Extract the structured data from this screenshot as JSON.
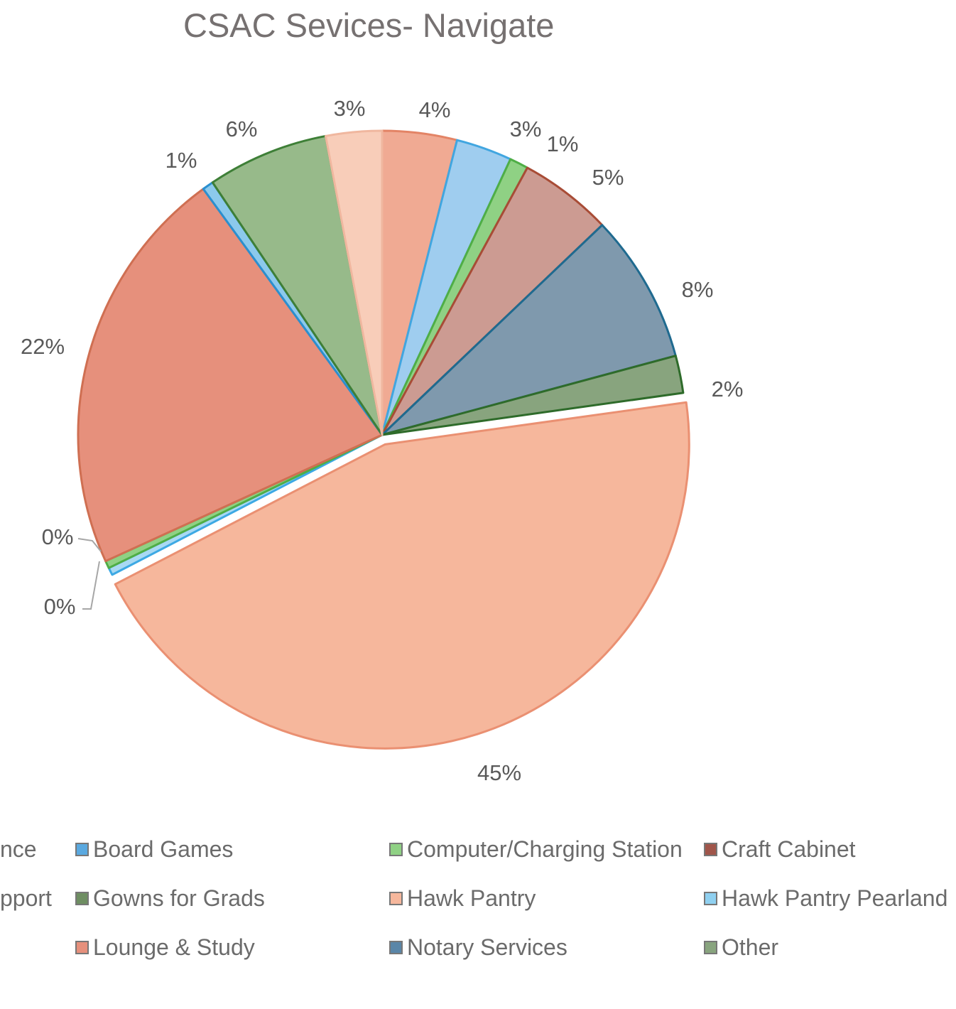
{
  "chart_data": {
    "type": "pie",
    "title": "CSAC Sevices- Navigate",
    "slices": [
      {
        "label": "Board Games",
        "value": 4,
        "display": "4%",
        "fill": "#f0aa93",
        "stroke": "#e38466"
      },
      {
        "label": "Computer/Charging Station",
        "value": 3,
        "display": "3%",
        "fill": "#9fcdef",
        "stroke": "#41a6e0"
      },
      {
        "label": "Craft Cabinet",
        "value": 1,
        "display": "1%",
        "fill": "#8fd184",
        "stroke": "#4fae46"
      },
      {
        "label": "Gowns for Grads",
        "value": 5,
        "display": "5%",
        "fill": "#cc9b92",
        "stroke": "#a84c36"
      },
      {
        "label": "Hawk Pantry",
        "value": 8,
        "display": "8%",
        "fill": "#7f99ad",
        "stroke": "#1f6a8f"
      },
      {
        "label": "Hawk Pantry Pearland",
        "value": 2,
        "display": "2%",
        "fill": "#88a47e",
        "stroke": "#2e6b2a"
      },
      {
        "label": "Lounge & Study",
        "value": 45,
        "display": "45%",
        "fill": "#f6b79c",
        "stroke": "#ea9072"
      },
      {
        "label": "Notary Services",
        "value": 0.4,
        "display": "0%",
        "fill": "#a9d9f3",
        "stroke": "#3da9e4"
      },
      {
        "label": "Other",
        "value": 0.4,
        "display": "0%",
        "fill": "#8fd184",
        "stroke": "#4fae46"
      },
      {
        "label": "",
        "value": 22,
        "display": "22%",
        "fill": "#e6907c",
        "stroke": "#cf6f52"
      },
      {
        "label": "",
        "value": 0.6,
        "display": "1%",
        "fill": "#8cc9ec",
        "stroke": "#2b8fcf"
      },
      {
        "label": "",
        "value": 6.5,
        "display": "6%",
        "fill": "#97ba8a",
        "stroke": "#3e7f37"
      },
      {
        "label": "",
        "value": 3,
        "display": "3%",
        "fill": "#f8cdb9",
        "stroke": "#f0b79f"
      }
    ],
    "legend": [
      {
        "text": "nce",
        "color": "#f8cdb9"
      },
      {
        "text": "Board Games",
        "color": "#5aa9e0"
      },
      {
        "text": "Computer/Charging Station",
        "color": "#8fd184"
      },
      {
        "text": "Craft Cabinet",
        "color": "#a0554a"
      },
      {
        "text": "pport",
        "color": "#ffffff"
      },
      {
        "text": "Gowns for Grads",
        "color": "#6e8e62"
      },
      {
        "text": "Hawk Pantry",
        "color": "#f6b79c"
      },
      {
        "text": "Hawk Pantry Pearland",
        "color": "#8fd0f0"
      },
      {
        "text": "Lounge & Study",
        "color": "#e6907c"
      },
      {
        "text": "Notary Services",
        "color": "#5a86a8"
      },
      {
        "text": "Other",
        "color": "#88a47e"
      }
    ],
    "legend_placement": "bottom"
  }
}
